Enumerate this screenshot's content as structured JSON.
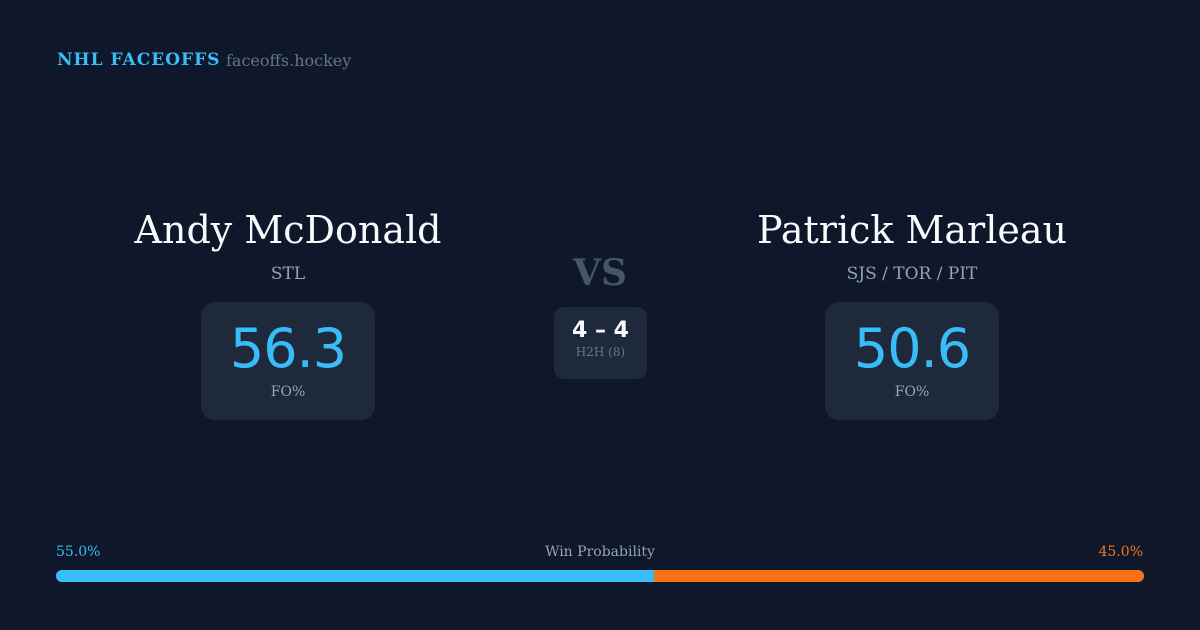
{
  "header": {
    "brand": "NHL FACEOFFS",
    "site": "faceoffs.hockey"
  },
  "player1": {
    "name": "Andy McDonald",
    "team": "STL",
    "fo_pct": "56.3",
    "fo_label": "FO%"
  },
  "player2": {
    "name": "Patrick Marleau",
    "team": "SJS / TOR / PIT",
    "fo_pct": "50.6",
    "fo_label": "FO%"
  },
  "vs": "VS",
  "h2h": {
    "score": "4 – 4",
    "label": "H2H (8)"
  },
  "win_probability": {
    "label": "Win Probability",
    "p1_text": "55.0%",
    "p2_text": "45.0%",
    "p1": 55.0,
    "p2": 45.0
  },
  "colors": {
    "background": "#0f172a",
    "accent": "#38bdf8",
    "opponent": "#f97316"
  }
}
